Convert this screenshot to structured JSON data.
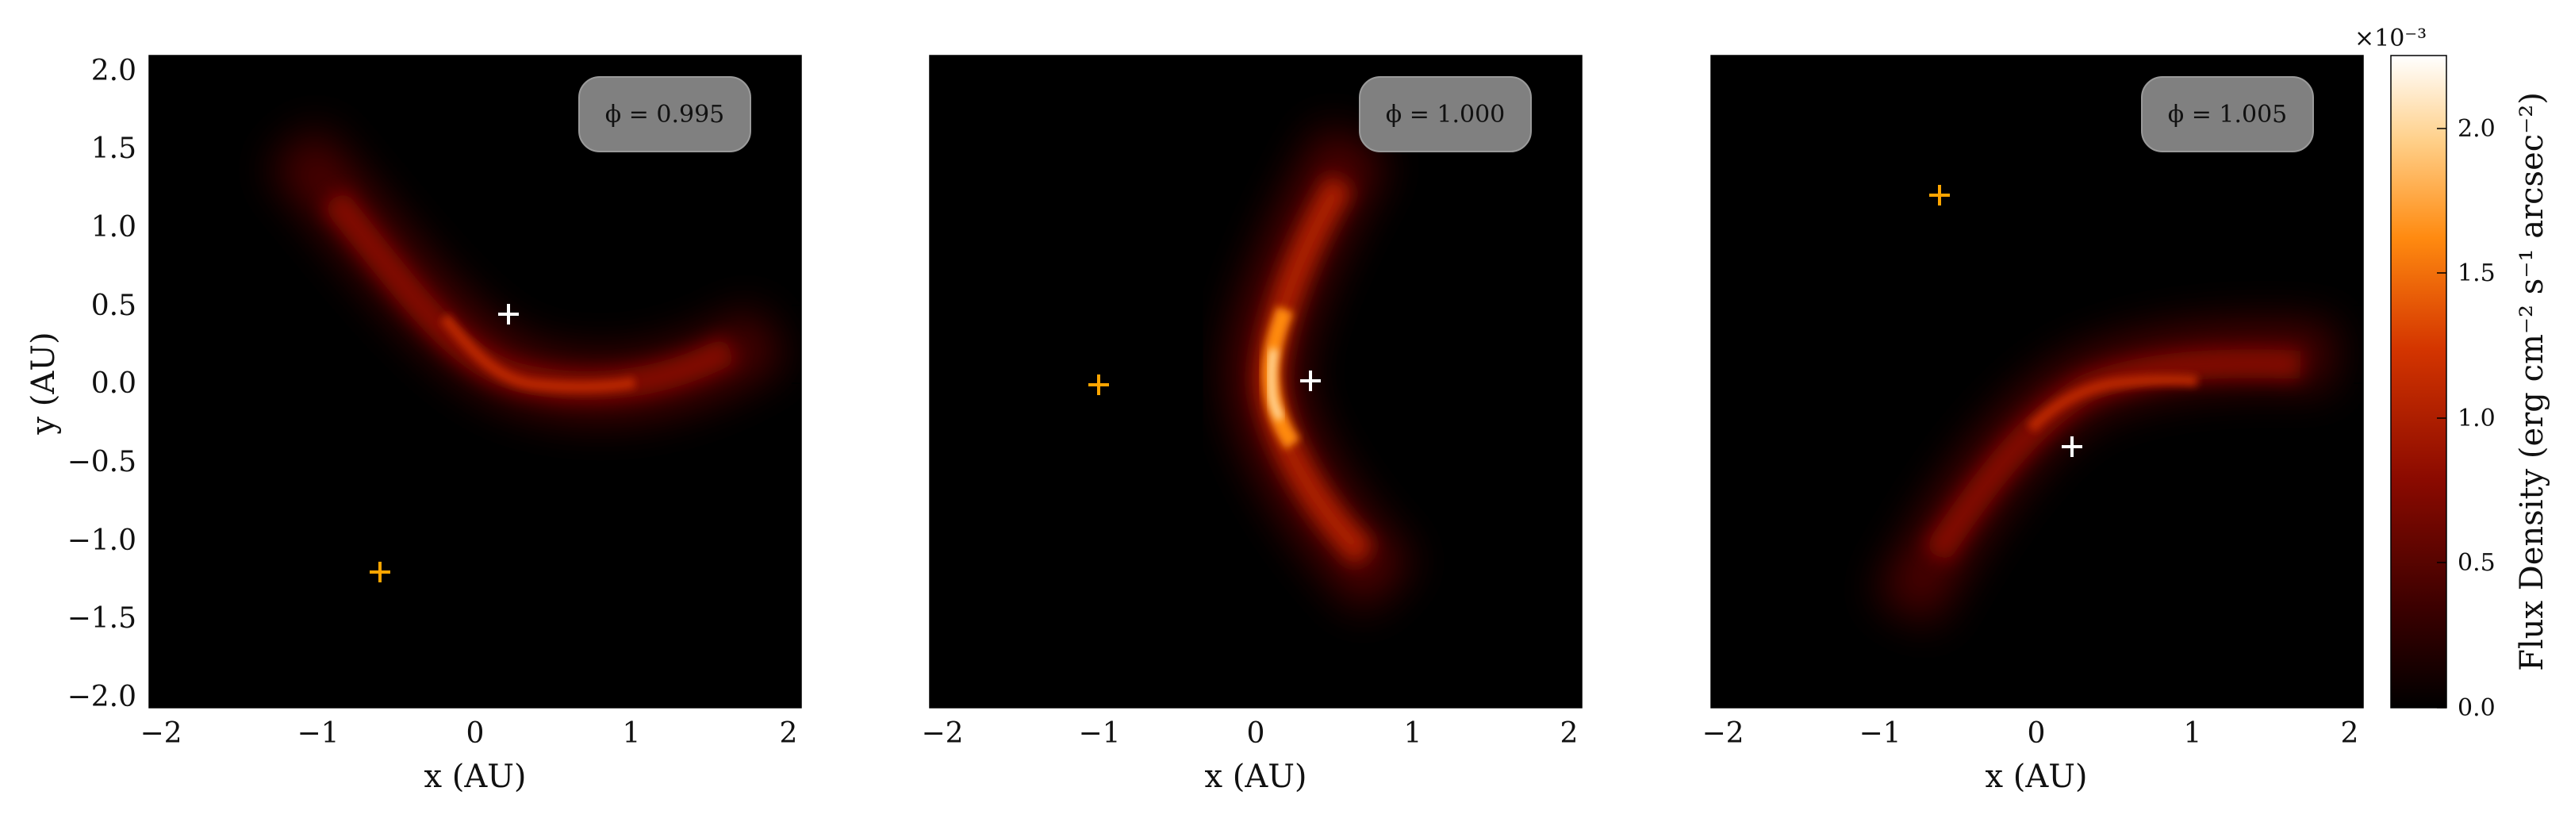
{
  "colors": {
    "background": "#000000",
    "secondary_marker": "#FFA500",
    "primary_marker": "#FFFFFF",
    "colormap": [
      "#000000",
      "#3a0000",
      "#8b0a00",
      "#d43500",
      "#ff8a10",
      "#ffd08a",
      "#ffffff"
    ],
    "phase_box": "#808080"
  },
  "chart_data": {
    "type": "heatmap",
    "shared_colorbar": {
      "label": "Flux Density (erg cm⁻² s⁻¹ arcsec⁻²)",
      "range": [
        0.0,
        2.25
      ],
      "ticks": [
        "0.0",
        "0.5",
        "1.0",
        "1.5",
        "2.0"
      ],
      "multiplier": "×10⁻³"
    },
    "panels": [
      {
        "phase_label": "ϕ = 0.995",
        "xlabel": "x (AU)",
        "ylabel": "y (AU)",
        "xlim": [
          -2.1,
          2.1
        ],
        "ylim": [
          -2.1,
          2.1
        ],
        "xticks": [
          "−2",
          "−1",
          "0",
          "1",
          "2"
        ],
        "yticks": [
          "2.0",
          "1.5",
          "1.0",
          "0.5",
          "0.0",
          "−0.5",
          "−1.0",
          "−1.5",
          "−2.0"
        ],
        "primary_star": {
          "x": 0.22,
          "y": 0.44
        },
        "secondary_star": {
          "x": -0.6,
          "y": -1.22
        },
        "emission_arc_apex": {
          "x": 0.2,
          "y": 0.05
        },
        "peak_flux": 1.1
      },
      {
        "phase_label": "ϕ = 1.000",
        "xlabel": "x (AU)",
        "xlim": [
          -2.1,
          2.1
        ],
        "ylim": [
          -2.1,
          2.1
        ],
        "xticks": [
          "−2",
          "−1",
          "0",
          "1",
          "2"
        ],
        "primary_star": {
          "x": 0.36,
          "y": 0.02
        },
        "secondary_star": {
          "x": -1.0,
          "y": 0.0
        },
        "emission_arc_apex": {
          "x": 0.1,
          "y": 0.05
        },
        "peak_flux": 2.2
      },
      {
        "phase_label": "ϕ = 1.005",
        "xlabel": "x (AU)",
        "xlim": [
          -2.1,
          2.1
        ],
        "ylim": [
          -2.1,
          2.1
        ],
        "xticks": [
          "−2",
          "−1",
          "0",
          "1",
          "2"
        ],
        "primary_star": {
          "x": 0.24,
          "y": -0.4
        },
        "secondary_star": {
          "x": -0.6,
          "y": 1.22
        },
        "emission_arc_apex": {
          "x": 0.2,
          "y": 0.0
        },
        "peak_flux": 1.1
      }
    ]
  }
}
